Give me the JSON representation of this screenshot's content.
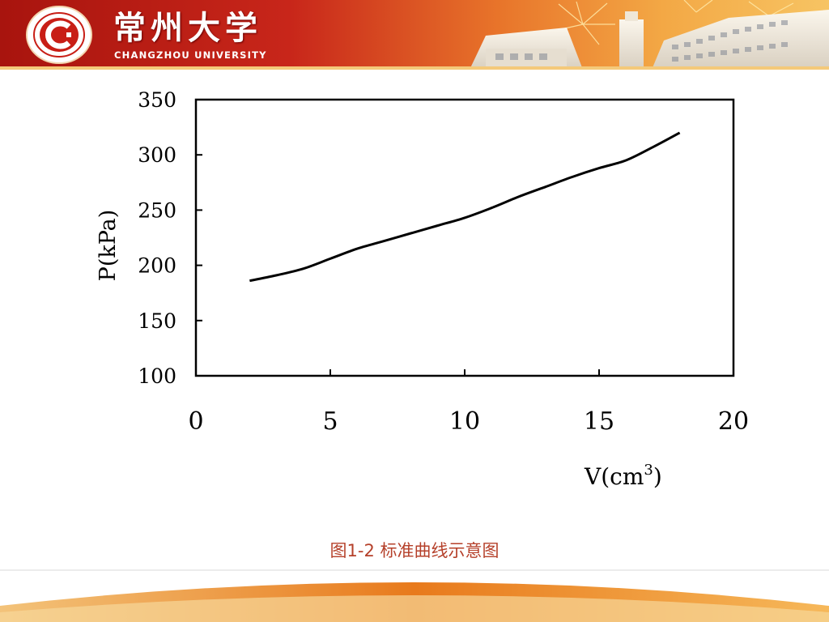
{
  "header": {
    "university_name_cn": "常州大学",
    "university_name_en": "CHANGZHOU UNIVERSITY",
    "seal_text": "常州大学 CHANGZHOU UNIVERSITY",
    "colors": {
      "banner_red": "#b81c14",
      "banner_orange": "#f2a03a",
      "accent": "#f6d27a"
    }
  },
  "chart_data": {
    "type": "line",
    "title": "",
    "xlabel": "V(cm",
    "xlabel_sup": "3",
    "xlabel_end": ")",
    "ylabel": "P(kPa)",
    "xlim": [
      0,
      20
    ],
    "ylim": [
      100,
      350
    ],
    "xticks": [
      0,
      5,
      10,
      15,
      20
    ],
    "yticks": [
      100,
      150,
      200,
      250,
      300,
      350
    ],
    "grid": false,
    "line_color": "#000000",
    "series": [
      {
        "x": [
          2,
          3,
          4,
          5,
          6,
          7,
          8,
          9,
          10,
          11,
          12,
          13,
          14,
          15,
          16,
          17,
          18
        ],
        "y": [
          186,
          191,
          197,
          206,
          215,
          222,
          229,
          236,
          243,
          252,
          262,
          271,
          280,
          288,
          295,
          307,
          320
        ]
      }
    ]
  },
  "caption": "图1-2  标准曲线示意图"
}
